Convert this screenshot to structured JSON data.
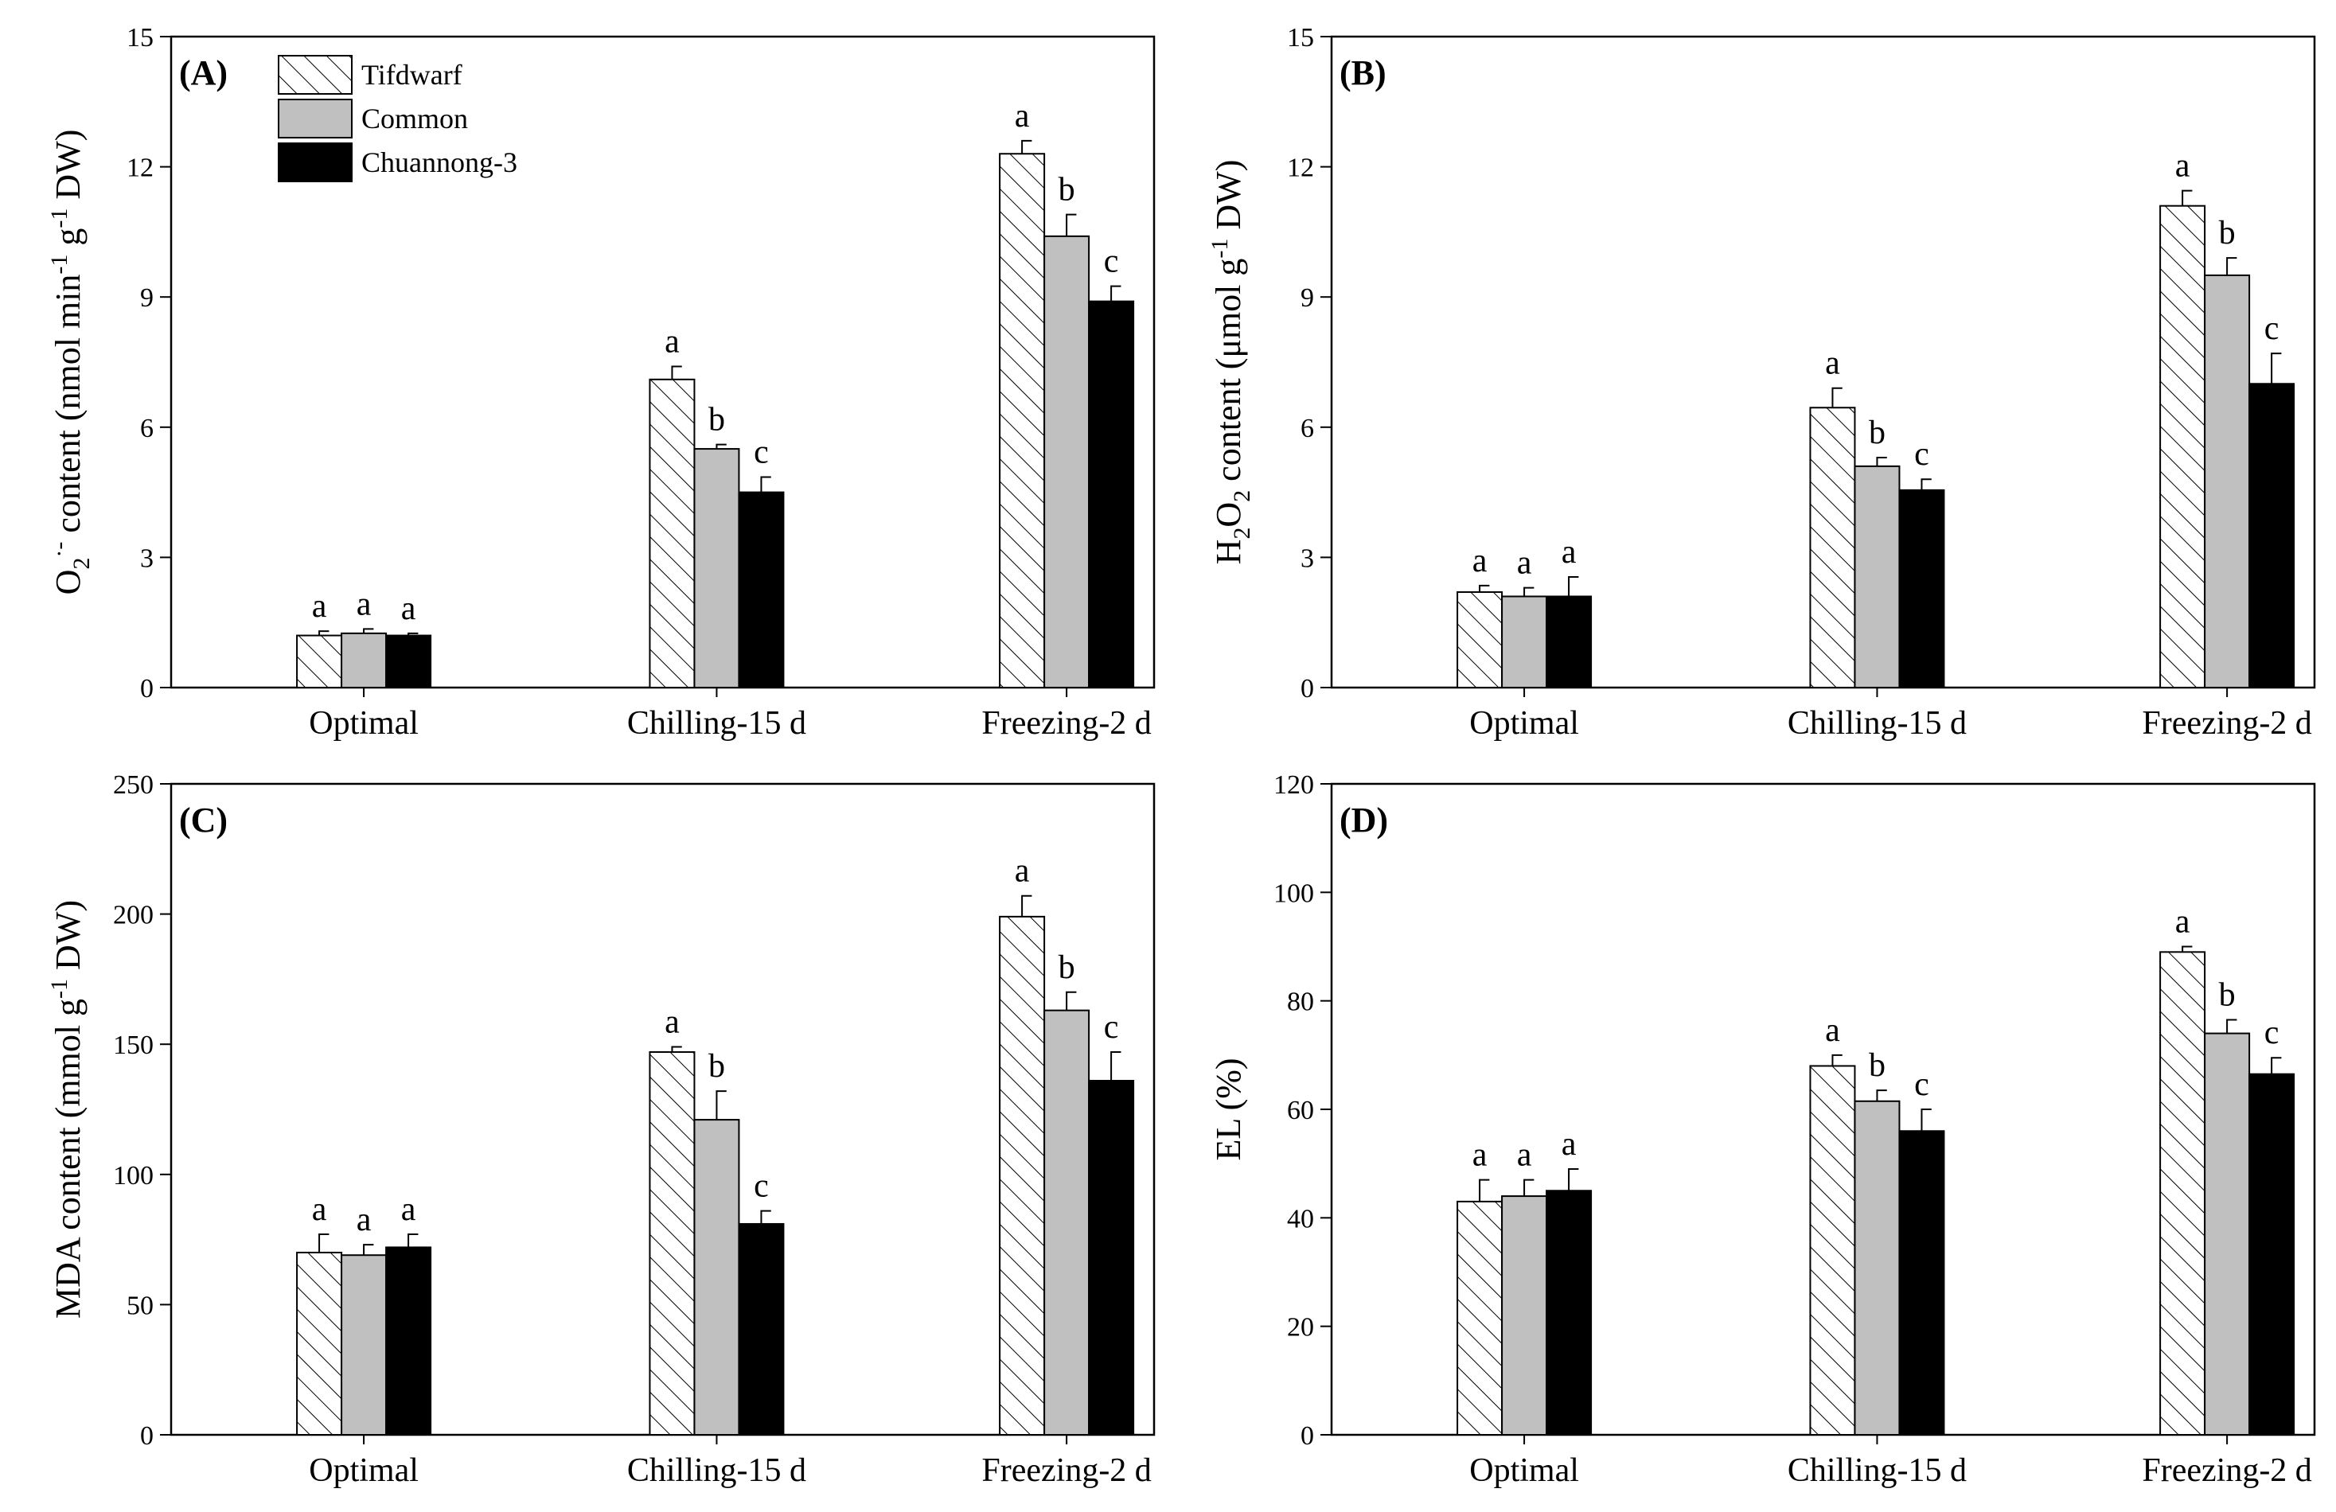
{
  "legend": {
    "items": [
      {
        "label": "Tifdwarf",
        "fill": "hatch"
      },
      {
        "label": "Common",
        "fill": "#c0c0c0"
      },
      {
        "label": "Chuannong-3",
        "fill": "#000000"
      }
    ]
  },
  "chart_data": [
    {
      "type": "bar",
      "panel": "(A)",
      "ylabel_text": "O2·⁻ content (nmol min⁻¹ g⁻¹ DW)",
      "ylabel": [
        {
          "t": "O",
          "k": "n"
        },
        {
          "t": "2",
          "k": "sub"
        },
        {
          "t": "·-",
          "k": "sup"
        },
        {
          "t": " content (nmol min",
          "k": "n"
        },
        {
          "t": "-1",
          "k": "sup"
        },
        {
          "t": " g",
          "k": "n"
        },
        {
          "t": "-1",
          "k": "sup"
        },
        {
          "t": " DW)",
          "k": "n"
        }
      ],
      "xlabel": "",
      "ylim": [
        0,
        15
      ],
      "yticks": [
        0,
        3,
        6,
        9,
        12,
        15
      ],
      "categories": [
        "Optimal",
        "Chilling-15 d",
        "Freezing-2 d"
      ],
      "series": [
        {
          "name": "Tifdwarf",
          "values": [
            1.2,
            7.1,
            12.3
          ],
          "errors": [
            0.1,
            0.3,
            0.3
          ],
          "letters": [
            "a",
            "a",
            "a"
          ]
        },
        {
          "name": "Common",
          "values": [
            1.25,
            5.5,
            10.4
          ],
          "errors": [
            0.1,
            0.1,
            0.5
          ],
          "letters": [
            "a",
            "b",
            "b"
          ]
        },
        {
          "name": "Chuannong-3",
          "values": [
            1.2,
            4.5,
            8.9
          ],
          "errors": [
            0.05,
            0.35,
            0.35
          ],
          "letters": [
            "a",
            "c",
            "c"
          ]
        }
      ]
    },
    {
      "type": "bar",
      "panel": "(B)",
      "ylabel_text": "H2O2 content (μmol g⁻¹ DW)",
      "ylabel": [
        {
          "t": "H",
          "k": "n"
        },
        {
          "t": "2",
          "k": "sub"
        },
        {
          "t": "O",
          "k": "n"
        },
        {
          "t": "2",
          "k": "sub"
        },
        {
          "t": " content (μmol g",
          "k": "n"
        },
        {
          "t": "-1",
          "k": "sup"
        },
        {
          "t": " DW)",
          "k": "n"
        }
      ],
      "xlabel": "",
      "ylim": [
        0,
        15
      ],
      "yticks": [
        0,
        3,
        6,
        9,
        12,
        15
      ],
      "categories": [
        "Optimal",
        "Chilling-15 d",
        "Freezing-2 d"
      ],
      "series": [
        {
          "name": "Tifdwarf",
          "values": [
            2.2,
            6.45,
            11.1
          ],
          "errors": [
            0.15,
            0.45,
            0.35
          ],
          "letters": [
            "a",
            "a",
            "a"
          ]
        },
        {
          "name": "Common",
          "values": [
            2.1,
            5.1,
            9.5
          ],
          "errors": [
            0.2,
            0.2,
            0.4
          ],
          "letters": [
            "a",
            "b",
            "b"
          ]
        },
        {
          "name": "Chuannong-3",
          "values": [
            2.1,
            4.55,
            7.0
          ],
          "errors": [
            0.45,
            0.25,
            0.7
          ],
          "letters": [
            "a",
            "c",
            "c"
          ]
        }
      ]
    },
    {
      "type": "bar",
      "panel": "(C)",
      "ylabel_text": "MDA content (mmol g⁻¹ DW)",
      "ylabel": [
        {
          "t": "MDA content (mmol g",
          "k": "n"
        },
        {
          "t": "-1",
          "k": "sup"
        },
        {
          "t": " DW)",
          "k": "n"
        }
      ],
      "xlabel": "",
      "ylim": [
        0,
        250
      ],
      "yticks": [
        0,
        50,
        100,
        150,
        200,
        250
      ],
      "categories": [
        "Optimal",
        "Chilling-15 d",
        "Freezing-2 d"
      ],
      "series": [
        {
          "name": "Tifdwarf",
          "values": [
            70,
            147,
            199
          ],
          "errors": [
            7,
            2,
            8
          ],
          "letters": [
            "a",
            "a",
            "a"
          ]
        },
        {
          "name": "Common",
          "values": [
            69,
            121,
            163
          ],
          "errors": [
            4,
            11,
            7
          ],
          "letters": [
            "a",
            "b",
            "b"
          ]
        },
        {
          "name": "Chuannong-3",
          "values": [
            72,
            81,
            136
          ],
          "errors": [
            5,
            5,
            11
          ],
          "letters": [
            "a",
            "c",
            "c"
          ]
        }
      ]
    },
    {
      "type": "bar",
      "panel": "(D)",
      "ylabel_text": "EL (%)",
      "ylabel": [
        {
          "t": "EL (%)",
          "k": "n"
        }
      ],
      "xlabel": "",
      "ylim": [
        0,
        120
      ],
      "yticks": [
        0,
        20,
        40,
        60,
        80,
        100,
        120
      ],
      "categories": [
        "Optimal",
        "Chilling-15 d",
        "Freezing-2 d"
      ],
      "series": [
        {
          "name": "Tifdwarf",
          "values": [
            43,
            68,
            89
          ],
          "errors": [
            4,
            2,
            1
          ],
          "letters": [
            "a",
            "a",
            "a"
          ]
        },
        {
          "name": "Common",
          "values": [
            44,
            61.5,
            74
          ],
          "errors": [
            3,
            2,
            2.5
          ],
          "letters": [
            "a",
            "b",
            "b"
          ]
        },
        {
          "name": "Chuannong-3",
          "values": [
            45,
            56,
            66.5
          ],
          "errors": [
            4,
            4,
            3
          ],
          "letters": [
            "a",
            "c",
            "c"
          ]
        }
      ]
    }
  ]
}
